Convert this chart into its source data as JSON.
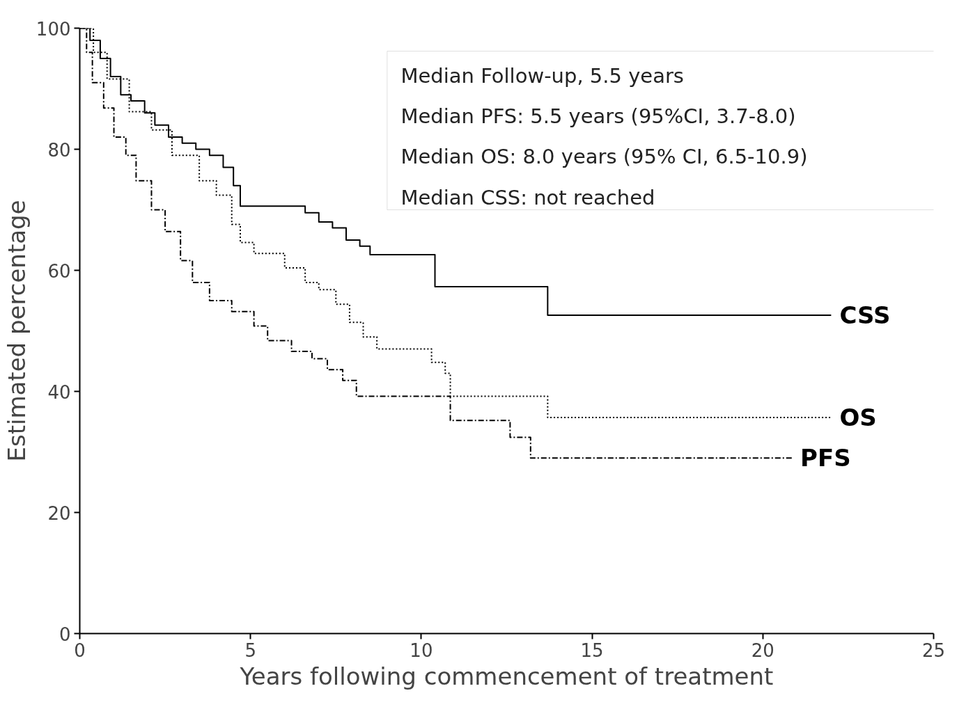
{
  "chart_data": {
    "type": "step",
    "xlabel": "Years following commencement of treatment",
    "ylabel": "Estimated percentage",
    "xlim": [
      0,
      25
    ],
    "ylim": [
      0,
      100
    ],
    "xticks": [
      0,
      5,
      10,
      15,
      20,
      25
    ],
    "yticks": [
      0,
      20,
      40,
      60,
      80,
      100
    ],
    "grid": false,
    "marker": "none",
    "annotations": [
      "Median Follow-up, 5.5 years",
      "Median PFS: 5.5 years (95%CI, 3.7-8.0)",
      "Median OS:  8.0 years (95% CI, 6.5-10.9)",
      "Median CSS: not reached"
    ],
    "series": [
      {
        "name": "CSS",
        "color": "#000000",
        "line_style": "solid",
        "x": [
          0,
          0.3,
          0.6,
          0.9,
          1.2,
          1.5,
          1.9,
          2.2,
          2.6,
          3.0,
          3.4,
          3.8,
          4.2,
          4.5,
          4.7,
          6.6,
          7.0,
          7.4,
          7.8,
          8.2,
          8.5,
          10.4,
          13.7,
          22.0
        ],
        "values": [
          100,
          98,
          95,
          92,
          89,
          88,
          86,
          84,
          82,
          81,
          80,
          79,
          77,
          74,
          70.6,
          69.5,
          68,
          67,
          65,
          64,
          62.6,
          57.3,
          52.6,
          52.6
        ]
      },
      {
        "name": "OS",
        "color": "#000000",
        "line_style": "dotted",
        "x": [
          0,
          0.4,
          0.8,
          1.45,
          2.1,
          2.7,
          3.5,
          4.0,
          4.45,
          4.7,
          5.1,
          6.0,
          6.6,
          7.0,
          7.5,
          7.9,
          8.3,
          8.7,
          10.3,
          10.7,
          10.85,
          13.7,
          22.0
        ],
        "values": [
          100,
          96,
          91.6,
          86.2,
          83.2,
          79,
          74.8,
          72.4,
          67.6,
          64.6,
          62.8,
          60.4,
          58,
          56.8,
          54.4,
          51.4,
          49,
          47,
          44.8,
          43,
          39.2,
          35.7,
          35.7
        ]
      },
      {
        "name": "PFS",
        "color": "#000000",
        "line_style": "dashed",
        "x": [
          0,
          0.2,
          0.37,
          0.7,
          1.0,
          1.35,
          1.65,
          2.1,
          2.5,
          2.95,
          3.3,
          3.8,
          4.45,
          5.1,
          5.5,
          6.2,
          6.8,
          7.25,
          7.7,
          8.1,
          10.85,
          12.6,
          13.2,
          20.85
        ],
        "values": [
          100,
          96,
          91,
          86.8,
          82,
          79,
          74.8,
          70,
          66.4,
          61.6,
          58,
          55,
          53.2,
          50.8,
          48.4,
          46.6,
          45.4,
          43.6,
          41.8,
          39.2,
          35.2,
          32.4,
          29,
          29
        ]
      }
    ]
  }
}
